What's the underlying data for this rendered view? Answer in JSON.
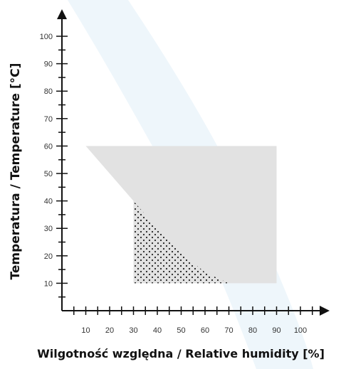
{
  "chart_data": {
    "type": "area",
    "title": "",
    "xlabel": "Wilgotność względna / Relative humidity [%]",
    "ylabel": "Temperatura / Temperature [°C]",
    "x_ticks": [
      10,
      20,
      30,
      40,
      50,
      60,
      70,
      80,
      90,
      100
    ],
    "y_ticks": [
      10,
      20,
      30,
      40,
      50,
      60,
      70,
      80,
      90,
      100
    ],
    "xlim": [
      0,
      110
    ],
    "ylim": [
      0,
      105
    ],
    "grid": false,
    "regions": [
      {
        "fill": "gray",
        "color": "#e2e2e2",
        "points": [
          [
            10,
            60
          ],
          [
            90,
            60
          ],
          [
            90,
            10
          ],
          [
            30,
            10
          ],
          [
            30,
            40
          ]
        ]
      },
      {
        "fill": "dotted",
        "color": "#222222",
        "points": [
          [
            30,
            40
          ],
          [
            40,
            30
          ],
          [
            50,
            21
          ],
          [
            60,
            14
          ],
          [
            70,
            10
          ],
          [
            30,
            10
          ]
        ]
      }
    ]
  },
  "colors": {
    "axis": "#111111",
    "background_watermark": "#eef6fb"
  }
}
